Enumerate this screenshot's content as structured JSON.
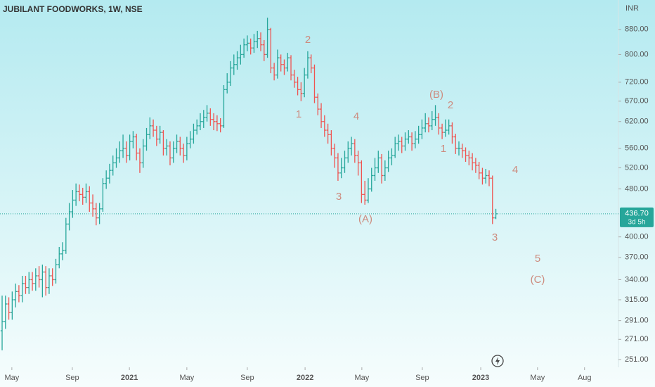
{
  "chart_data": {
    "type": "ohlc",
    "title": "JUBILANT FOODWORKS, 1W, NSE",
    "currency": "INR",
    "log_scale": true,
    "up_color": "#26a69a",
    "down_color": "#ef5350",
    "open": [
      280,
      290,
      310,
      300,
      315,
      325,
      320,
      335,
      330,
      340,
      335,
      345,
      340,
      350,
      330,
      345,
      340,
      360,
      375,
      380,
      420,
      440,
      460,
      475,
      470,
      465,
      475,
      455,
      445,
      430,
      445,
      490,
      500,
      515,
      530,
      540,
      555,
      560,
      545,
      575,
      585,
      550,
      530,
      565,
      590,
      610,
      600,
      580,
      595,
      560,
      565,
      540,
      560,
      575,
      560,
      545,
      570,
      580,
      600,
      610,
      620,
      630,
      640,
      625,
      620,
      615,
      610,
      700,
      720,
      760,
      770,
      790,
      800,
      830,
      835,
      820,
      840,
      850,
      830,
      800,
      880,
      760,
      740,
      790,
      770,
      760,
      790,
      740,
      720,
      700,
      690,
      740,
      790,
      760,
      680,
      650,
      620,
      600,
      590,
      560,
      540,
      510,
      520,
      540,
      560,
      570,
      545,
      530,
      470,
      460,
      480,
      505,
      520,
      540,
      505,
      520,
      540,
      545,
      570,
      575,
      565,
      580,
      585,
      570,
      580,
      590,
      605,
      615,
      610,
      625,
      630,
      605,
      595,
      600,
      610,
      585,
      560,
      560,
      555,
      545,
      540,
      530,
      525,
      510,
      500,
      505,
      500,
      430
    ],
    "high": [
      320,
      320,
      318,
      325,
      335,
      333,
      345,
      345,
      350,
      350,
      355,
      358,
      360,
      358,
      355,
      355,
      368,
      385,
      392,
      430,
      455,
      478,
      490,
      488,
      482,
      490,
      485,
      470,
      455,
      455,
      500,
      515,
      528,
      545,
      560,
      575,
      590,
      575,
      590,
      598,
      592,
      560,
      580,
      605,
      630,
      625,
      610,
      610,
      600,
      580,
      575,
      575,
      590,
      585,
      570,
      585,
      598,
      615,
      625,
      640,
      648,
      660,
      652,
      640,
      635,
      628,
      712,
      745,
      780,
      800,
      810,
      830,
      850,
      860,
      850,
      865,
      875,
      870,
      845,
      920,
      885,
      775,
      815,
      800,
      785,
      805,
      798,
      755,
      735,
      720,
      760,
      810,
      800,
      770,
      690,
      665,
      635,
      615,
      600,
      570,
      550,
      540,
      555,
      575,
      585,
      580,
      555,
      535,
      495,
      500,
      520,
      540,
      555,
      548,
      535,
      555,
      560,
      585,
      590,
      585,
      595,
      600,
      595,
      598,
      610,
      625,
      640,
      630,
      645,
      660,
      640,
      615,
      625,
      625,
      618,
      592,
      575,
      570,
      562,
      555,
      550,
      540,
      532,
      520,
      518,
      515,
      505,
      445
    ],
    "low": [
      260,
      282,
      292,
      292,
      306,
      312,
      312,
      322,
      322,
      326,
      326,
      330,
      318,
      320,
      322,
      332,
      335,
      355,
      366,
      375,
      410,
      430,
      450,
      458,
      452,
      455,
      440,
      432,
      418,
      420,
      440,
      480,
      490,
      505,
      520,
      530,
      540,
      530,
      535,
      560,
      535,
      510,
      520,
      555,
      580,
      585,
      565,
      570,
      545,
      545,
      525,
      530,
      550,
      545,
      530,
      535,
      560,
      570,
      590,
      600,
      605,
      620,
      610,
      600,
      598,
      595,
      605,
      690,
      710,
      740,
      755,
      770,
      790,
      810,
      800,
      805,
      820,
      810,
      780,
      790,
      745,
      725,
      730,
      750,
      740,
      750,
      725,
      705,
      685,
      670,
      680,
      730,
      745,
      665,
      635,
      605,
      585,
      570,
      545,
      520,
      495,
      500,
      510,
      530,
      545,
      530,
      505,
      455,
      452,
      455,
      475,
      495,
      510,
      490,
      495,
      512,
      525,
      540,
      555,
      550,
      555,
      570,
      555,
      560,
      570,
      580,
      595,
      595,
      600,
      610,
      590,
      580,
      585,
      590,
      570,
      548,
      545,
      540,
      532,
      525,
      515,
      510,
      498,
      488,
      490,
      485,
      420,
      428
    ],
    "close": [
      290,
      310,
      300,
      315,
      325,
      320,
      335,
      330,
      340,
      335,
      345,
      340,
      350,
      330,
      345,
      340,
      360,
      375,
      380,
      420,
      440,
      460,
      475,
      470,
      465,
      475,
      455,
      445,
      430,
      445,
      490,
      500,
      515,
      530,
      540,
      555,
      560,
      545,
      575,
      585,
      550,
      530,
      565,
      590,
      610,
      600,
      580,
      595,
      560,
      565,
      540,
      560,
      575,
      560,
      545,
      570,
      580,
      600,
      610,
      620,
      630,
      640,
      625,
      620,
      615,
      610,
      700,
      720,
      760,
      770,
      790,
      800,
      830,
      835,
      820,
      840,
      850,
      830,
      800,
      880,
      760,
      740,
      790,
      770,
      760,
      790,
      740,
      720,
      700,
      690,
      740,
      790,
      760,
      680,
      650,
      620,
      600,
      590,
      560,
      540,
      510,
      520,
      540,
      560,
      570,
      545,
      530,
      470,
      460,
      480,
      505,
      520,
      540,
      505,
      520,
      540,
      545,
      570,
      575,
      565,
      580,
      585,
      570,
      580,
      590,
      605,
      615,
      610,
      625,
      630,
      605,
      595,
      600,
      610,
      585,
      560,
      560,
      555,
      545,
      540,
      530,
      525,
      510,
      500,
      505,
      500,
      430,
      436.7
    ],
    "last": {
      "value": 436.7,
      "label": "436.70"
    },
    "countdown": "3d 5h",
    "ylim": [
      243.7,
      984
    ],
    "yticks": [
      {
        "value": 251,
        "label": "251.00"
      },
      {
        "value": 271,
        "label": "271.00"
      },
      {
        "value": 291,
        "label": "291.00"
      },
      {
        "value": 315,
        "label": "315.00"
      },
      {
        "value": 340,
        "label": "340.00"
      },
      {
        "value": 370,
        "label": "370.00"
      },
      {
        "value": 400,
        "label": "400.00"
      },
      {
        "value": 480,
        "label": "480.00"
      },
      {
        "value": 520,
        "label": "520.00"
      },
      {
        "value": 560,
        "label": "560.00"
      },
      {
        "value": 620,
        "label": "620.00"
      },
      {
        "value": 670,
        "label": "670.00"
      },
      {
        "value": 720,
        "label": "720.00"
      },
      {
        "value": 800,
        "label": "800.00"
      },
      {
        "value": 880,
        "label": "880.00"
      }
    ],
    "xlim": [
      -0.63,
      183.5
    ],
    "xticks": [
      {
        "value": 2.9,
        "label": "May"
      },
      {
        "value": 20.9,
        "label": "Sep"
      },
      {
        "value": 37.9,
        "label": "2021"
      },
      {
        "value": 55.0,
        "label": "May"
      },
      {
        "value": 73.0,
        "label": "Sep"
      },
      {
        "value": 90.2,
        "label": "2022"
      },
      {
        "value": 107.1,
        "label": "May"
      },
      {
        "value": 125.1,
        "label": "Sep"
      },
      {
        "value": 142.5,
        "label": "2023"
      },
      {
        "value": 159.4,
        "label": "May"
      },
      {
        "value": 173.4,
        "label": "Aug"
      }
    ],
    "annotations": [
      "2",
      "1",
      "4",
      "3",
      "(A)",
      "(B)",
      "2",
      "1",
      "4",
      "3",
      "5",
      "(C)"
    ],
    "annotation_color": "#cd8b7e"
  }
}
